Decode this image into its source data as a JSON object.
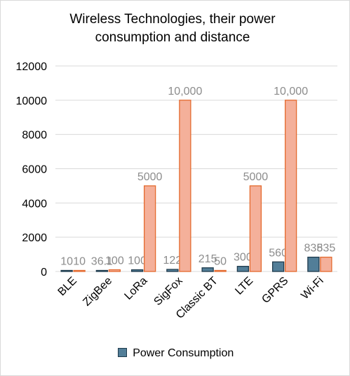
{
  "chart_data": {
    "type": "bar",
    "title": "Wireless Technologies, their power consumption and distance",
    "title_lines": [
      "Wireless Technologies, their power",
      "consumption and distance"
    ],
    "categories": [
      "BLE",
      "ZigBee",
      "LoRa",
      "SigFox",
      "Classic BT",
      "LTE",
      "GPRS",
      "Wi-Fi"
    ],
    "series": [
      {
        "name": "Power Consumption",
        "color": "#527e98",
        "stroke": "#1f3b4d",
        "values": [
          10,
          36.1,
          100,
          122,
          215,
          300,
          560,
          835
        ],
        "labels": [
          "10",
          "36.1",
          "100",
          "122",
          "215",
          "300",
          "560",
          "835"
        ]
      },
      {
        "color": "#f4b09a",
        "stroke": "#e46a2e",
        "values": [
          10,
          100,
          5000,
          10000,
          50,
          5000,
          10000,
          835
        ],
        "labels": [
          "10",
          "100",
          "5000",
          "10,000",
          "50",
          "5000",
          "10,000",
          "835"
        ]
      }
    ],
    "yticks": [
      "0",
      "2000",
      "4000",
      "6000",
      "8000",
      "10000",
      "12000"
    ],
    "ylim": [
      0,
      12000
    ],
    "xlabel": "",
    "ylabel": "",
    "grid": true,
    "legend": {
      "position": "bottom",
      "entries": [
        "Power Consumption"
      ]
    }
  }
}
